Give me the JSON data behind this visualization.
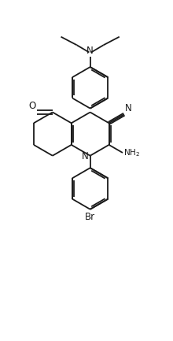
{
  "figsize": [
    2.2,
    4.33
  ],
  "dpi": 100,
  "bg_color": "#ffffff",
  "line_color": "#1a1a1a",
  "bond_lw": 1.3,
  "font_size": 7.5,
  "xlim": [
    -2.8,
    2.8
  ],
  "ylim": [
    -6.2,
    7.8
  ],
  "ring_r": 0.85
}
